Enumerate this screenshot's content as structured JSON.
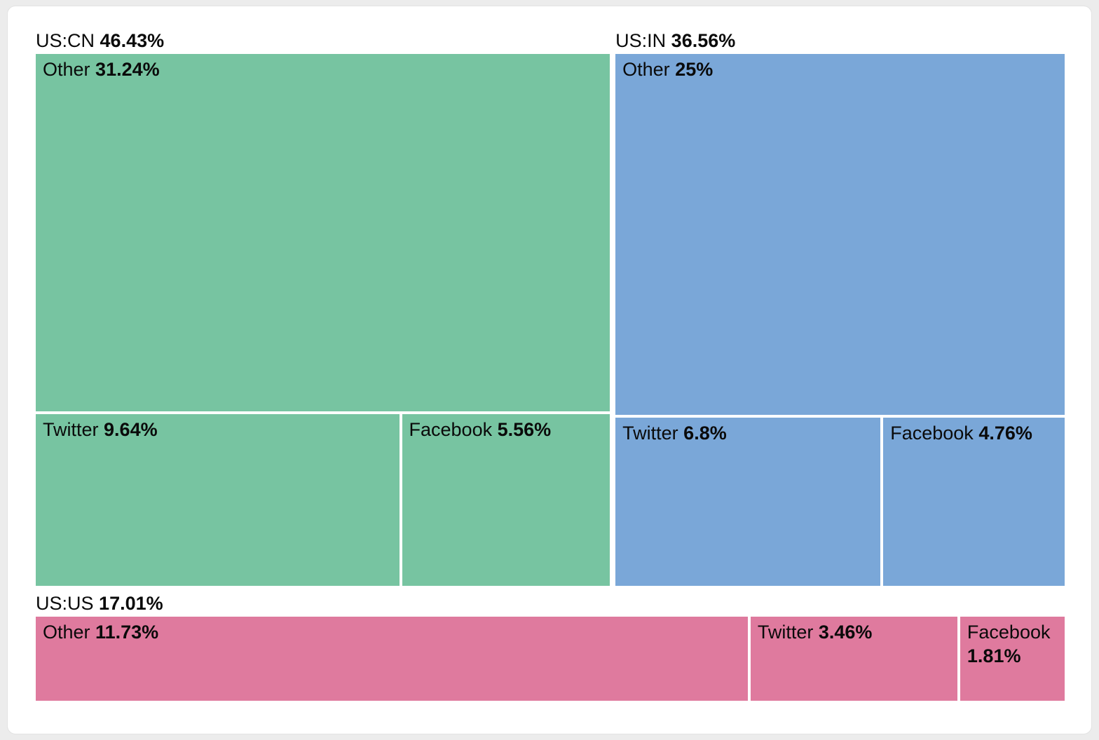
{
  "chart_data": {
    "type": "treemap",
    "title": "",
    "unit": "%",
    "legend": "none",
    "groups": [
      {
        "name": "US:CN",
        "pct": "46.43%",
        "value": 46.43,
        "color": "#77C4A1",
        "children": [
          {
            "name": "Other",
            "pct": "31.24%",
            "value": 31.24
          },
          {
            "name": "Twitter",
            "pct": "9.64%",
            "value": 9.64
          },
          {
            "name": "Facebook",
            "pct": "5.56%",
            "value": 5.56
          }
        ]
      },
      {
        "name": "US:IN",
        "pct": "36.56%",
        "value": 36.56,
        "color": "#7AA7D8",
        "children": [
          {
            "name": "Other",
            "pct": "25%",
            "value": 25
          },
          {
            "name": "Twitter",
            "pct": "6.8%",
            "value": 6.8
          },
          {
            "name": "Facebook",
            "pct": "4.76%",
            "value": 4.76
          }
        ]
      },
      {
        "name": "US:US",
        "pct": "17.01%",
        "value": 17.01,
        "color": "#DF7A9E",
        "children": [
          {
            "name": "Other",
            "pct": "11.73%",
            "value": 11.73
          },
          {
            "name": "Twitter",
            "pct": "3.46%",
            "value": 3.46
          },
          {
            "name": "Facebook",
            "pct": "1.81%",
            "value": 1.81
          }
        ]
      }
    ]
  }
}
